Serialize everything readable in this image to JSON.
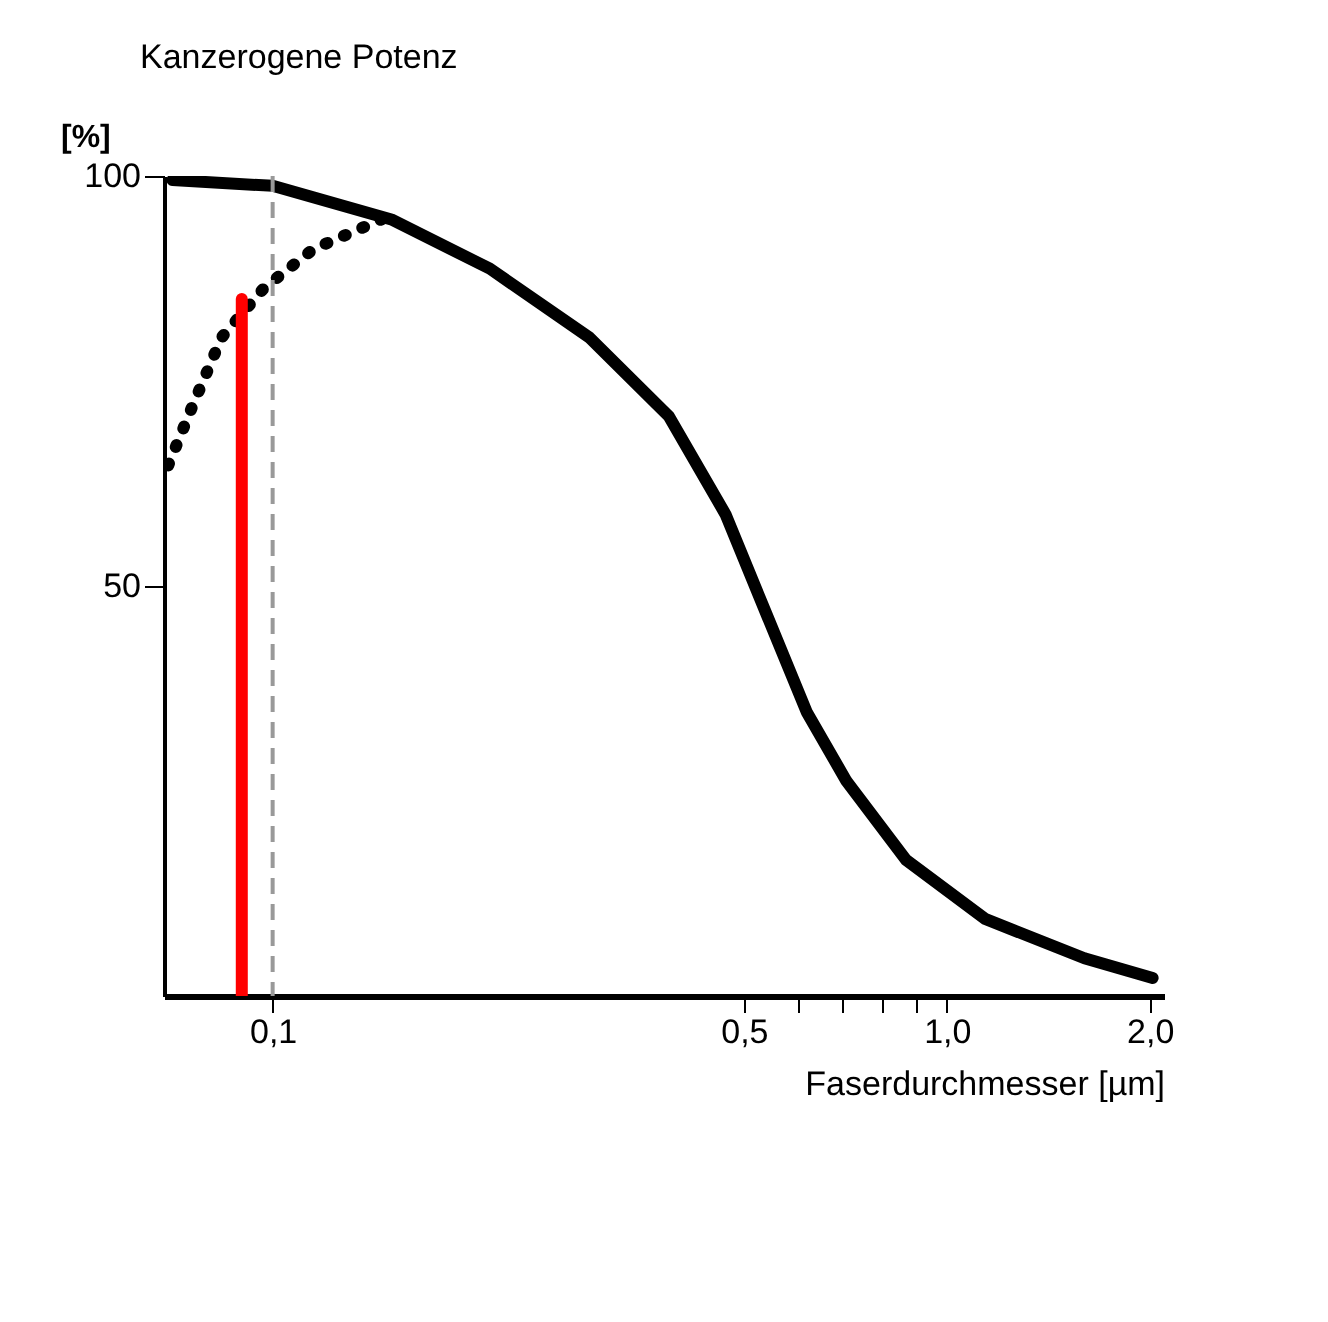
{
  "chart_data": {
    "type": "line",
    "title": "Kanzerogene  Potenz",
    "xlabel": "Faserdurchmesser [µm]",
    "ylabel": "[%]",
    "log": "x",
    "grid": false,
    "marker": "none",
    "xlim": [
      0.069,
      2.1
    ],
    "xticks": [
      {
        "value": 0.1,
        "label": "0,1"
      },
      {
        "value": 0.5,
        "label": "0,5"
      },
      {
        "value": 0.6,
        "label": null
      },
      {
        "value": 0.7,
        "label": null
      },
      {
        "value": 0.8,
        "label": null
      },
      {
        "value": 0.9,
        "label": null
      },
      {
        "value": 1.0,
        "label": "1,0"
      },
      {
        "value": 2.0,
        "label": "2,0"
      }
    ],
    "ylim": [
      0,
      100
    ],
    "yticks": [
      50,
      100
    ],
    "series": [
      {
        "color": "#000000",
        "line_style": "solid",
        "x": [
          0.071,
          0.1,
          0.15,
          0.21,
          0.295,
          0.387,
          0.47,
          0.54,
          0.62,
          0.71,
          0.87,
          1.14,
          1.6,
          2.02
        ],
        "values": [
          99.5,
          98.8,
          94.7,
          88.7,
          80.3,
          70.7,
          58.7,
          46.6,
          34.6,
          26.2,
          16.6,
          9.4,
          4.6,
          2.2
        ]
      },
      {
        "color": "#000000",
        "line_style": "dotted",
        "x": [
          0.07,
          0.076,
          0.084,
          0.097,
          0.115,
          0.145
        ],
        "values": [
          64.7,
          71.9,
          80.3,
          86.3,
          91.1,
          94.7
        ]
      },
      {
        "color": "#ff0000",
        "line_style": "solid",
        "x": [
          0.09,
          0.09
        ],
        "values": [
          85,
          0
        ]
      }
    ],
    "ref_lines": [
      {
        "axis": "x",
        "value": 0.1,
        "color": "#999999",
        "line_style": "dashed"
      }
    ]
  }
}
